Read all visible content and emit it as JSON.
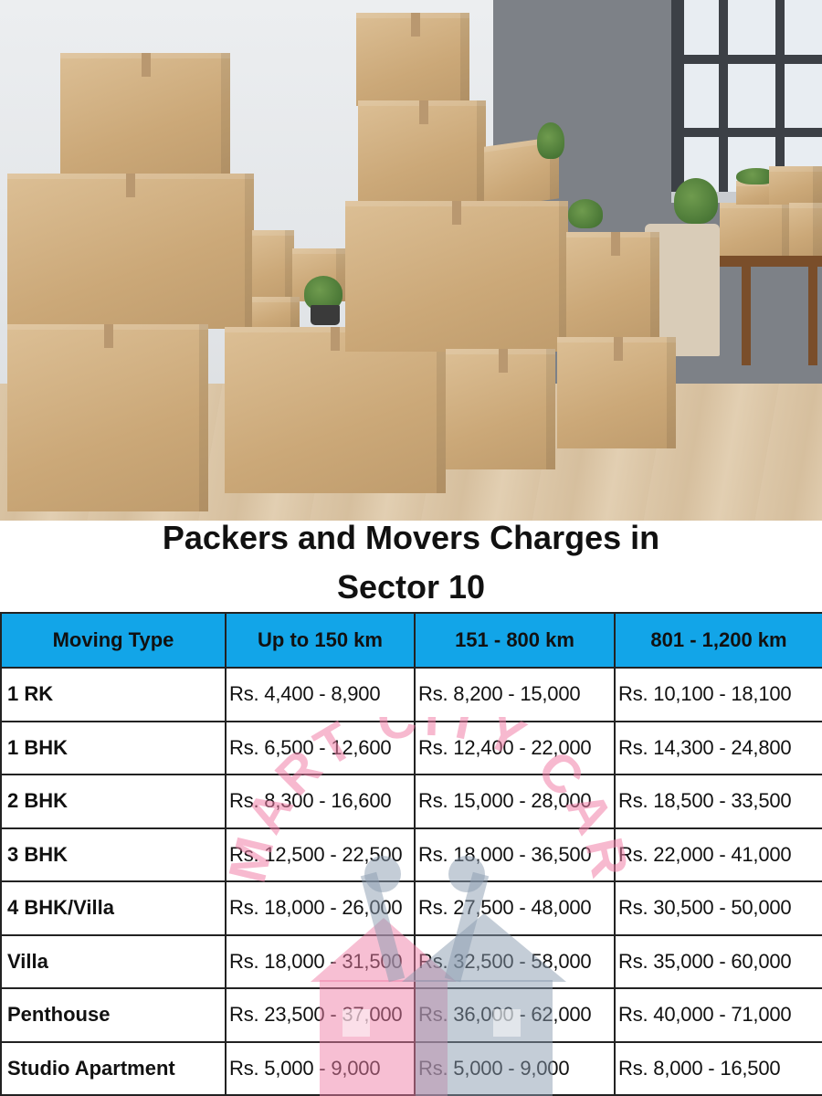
{
  "heading": {
    "line1": "Packers and Movers Charges in",
    "line2": "Sector 10"
  },
  "table": {
    "headers": [
      "Moving Type",
      "Up to 150 km",
      "151 - 800 km",
      "801 - 1,200 km"
    ],
    "rows": [
      {
        "type": "1 RK",
        "c1": "Rs. 4,400 - 8,900",
        "c2": "Rs. 8,200 - 15,000",
        "c3": "Rs. 10,100 - 18,100"
      },
      {
        "type": "1 BHK",
        "c1": "Rs. 6,500 - 12,600",
        "c2": "Rs. 12,400 - 22,000",
        "c3": "Rs. 14,300 - 24,800"
      },
      {
        "type": "2 BHK",
        "c1": "Rs. 8,300 - 16,600",
        "c2": "Rs. 15,000 - 28,000",
        "c3": "Rs. 18,500 - 33,500"
      },
      {
        "type": "3 BHK",
        "c1": "Rs. 12,500 - 22,500",
        "c2": "Rs. 18,000 - 36,500",
        "c3": "Rs. 22,000 - 41,000"
      },
      {
        "type": "4 BHK/Villa",
        "c1": "Rs. 18,000 - 26,000",
        "c2": "Rs. 27,500 - 48,000",
        "c3": "Rs. 30,500 - 50,000"
      },
      {
        "type": "Villa",
        "c1": "Rs. 18,000 - 31,500",
        "c2": "Rs. 32,500 - 58,000",
        "c3": "Rs. 35,000 - 60,000"
      },
      {
        "type": "Penthouse",
        "c1": "Rs. 23,500 - 37,000",
        "c2": "Rs. 36,000 - 62,000",
        "c3": "Rs. 40,000 - 71,000"
      },
      {
        "type": "Studio Apartment",
        "c1": "Rs. 5,000 - 9,000",
        "c2": "Rs. 5,000 - 9,000",
        "c3": "Rs. 8,000 - 16,500"
      }
    ]
  },
  "watermark": {
    "text": "SMART CITY CARE",
    "colors": {
      "pink": "#f07fa8",
      "slate": "#8a9bb0"
    }
  },
  "colors": {
    "header_bg": "#12a5e8",
    "border": "#222222",
    "text": "#111111"
  }
}
